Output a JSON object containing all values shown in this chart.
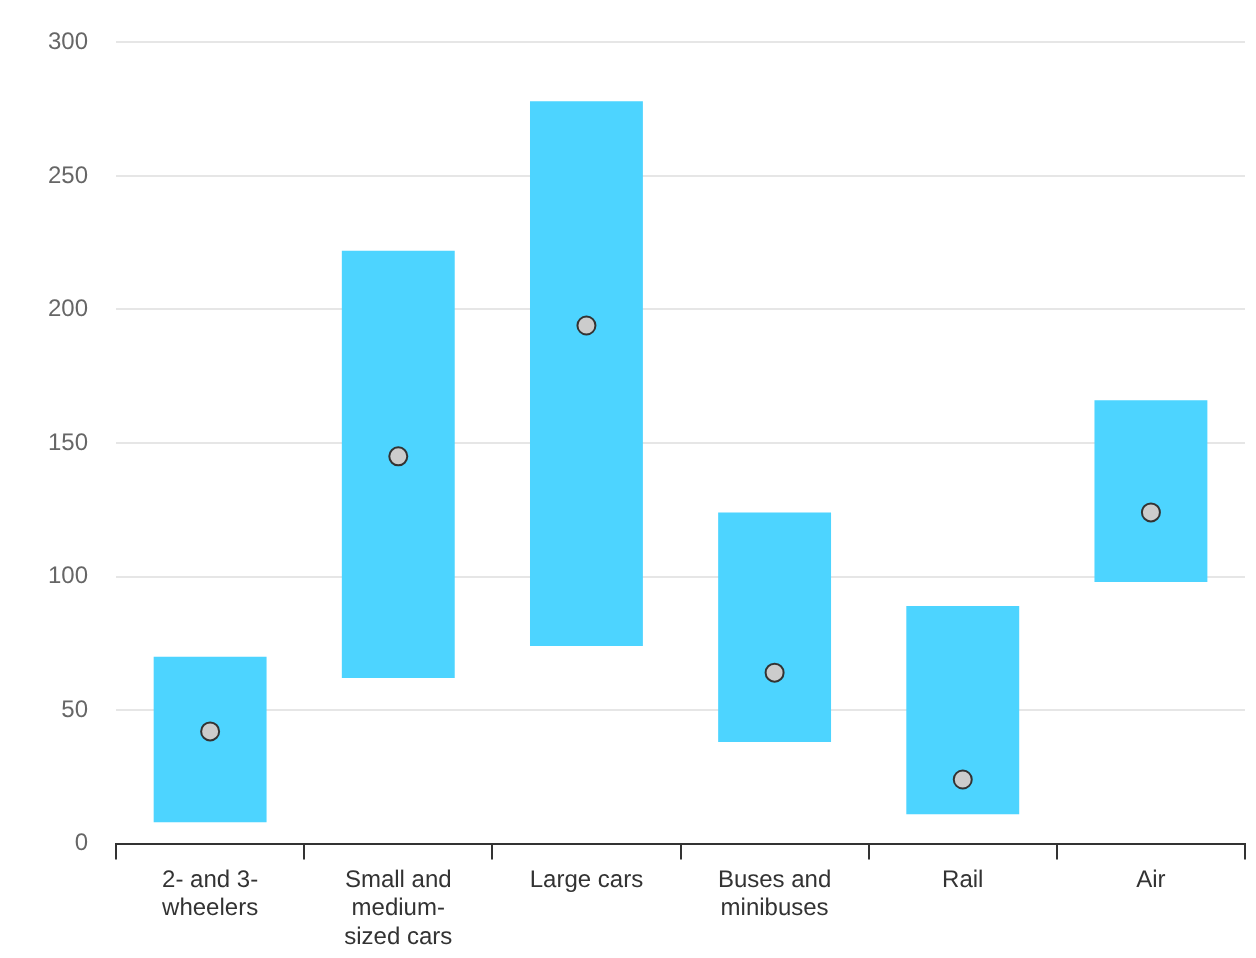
{
  "chart_data": {
    "type": "bar",
    "categories": [
      "2- and 3-wheelers",
      "Small and medium-sized cars",
      "Large cars",
      "Buses and minibuses",
      "Rail",
      "Air"
    ],
    "series": [
      {
        "color": "#4dd4ff",
        "base": [
          8,
          62,
          74,
          38,
          11,
          98
        ],
        "values": [
          62,
          160,
          204,
          86,
          78,
          68
        ]
      },
      {
        "type": "scatter",
        "color": "#cccccc",
        "x": [
          "2- and 3-wheelers",
          "Small and medium-sized cars",
          "Large cars",
          "Buses and minibuses",
          "Rail",
          "Air"
        ],
        "values": [
          42,
          145,
          194,
          64,
          24,
          124
        ]
      }
    ],
    "ylim": [
      0,
      300
    ],
    "yticks": [
      0,
      50,
      100,
      150,
      200,
      250,
      300
    ],
    "grid": "y",
    "legend": false,
    "marker": "circle"
  }
}
